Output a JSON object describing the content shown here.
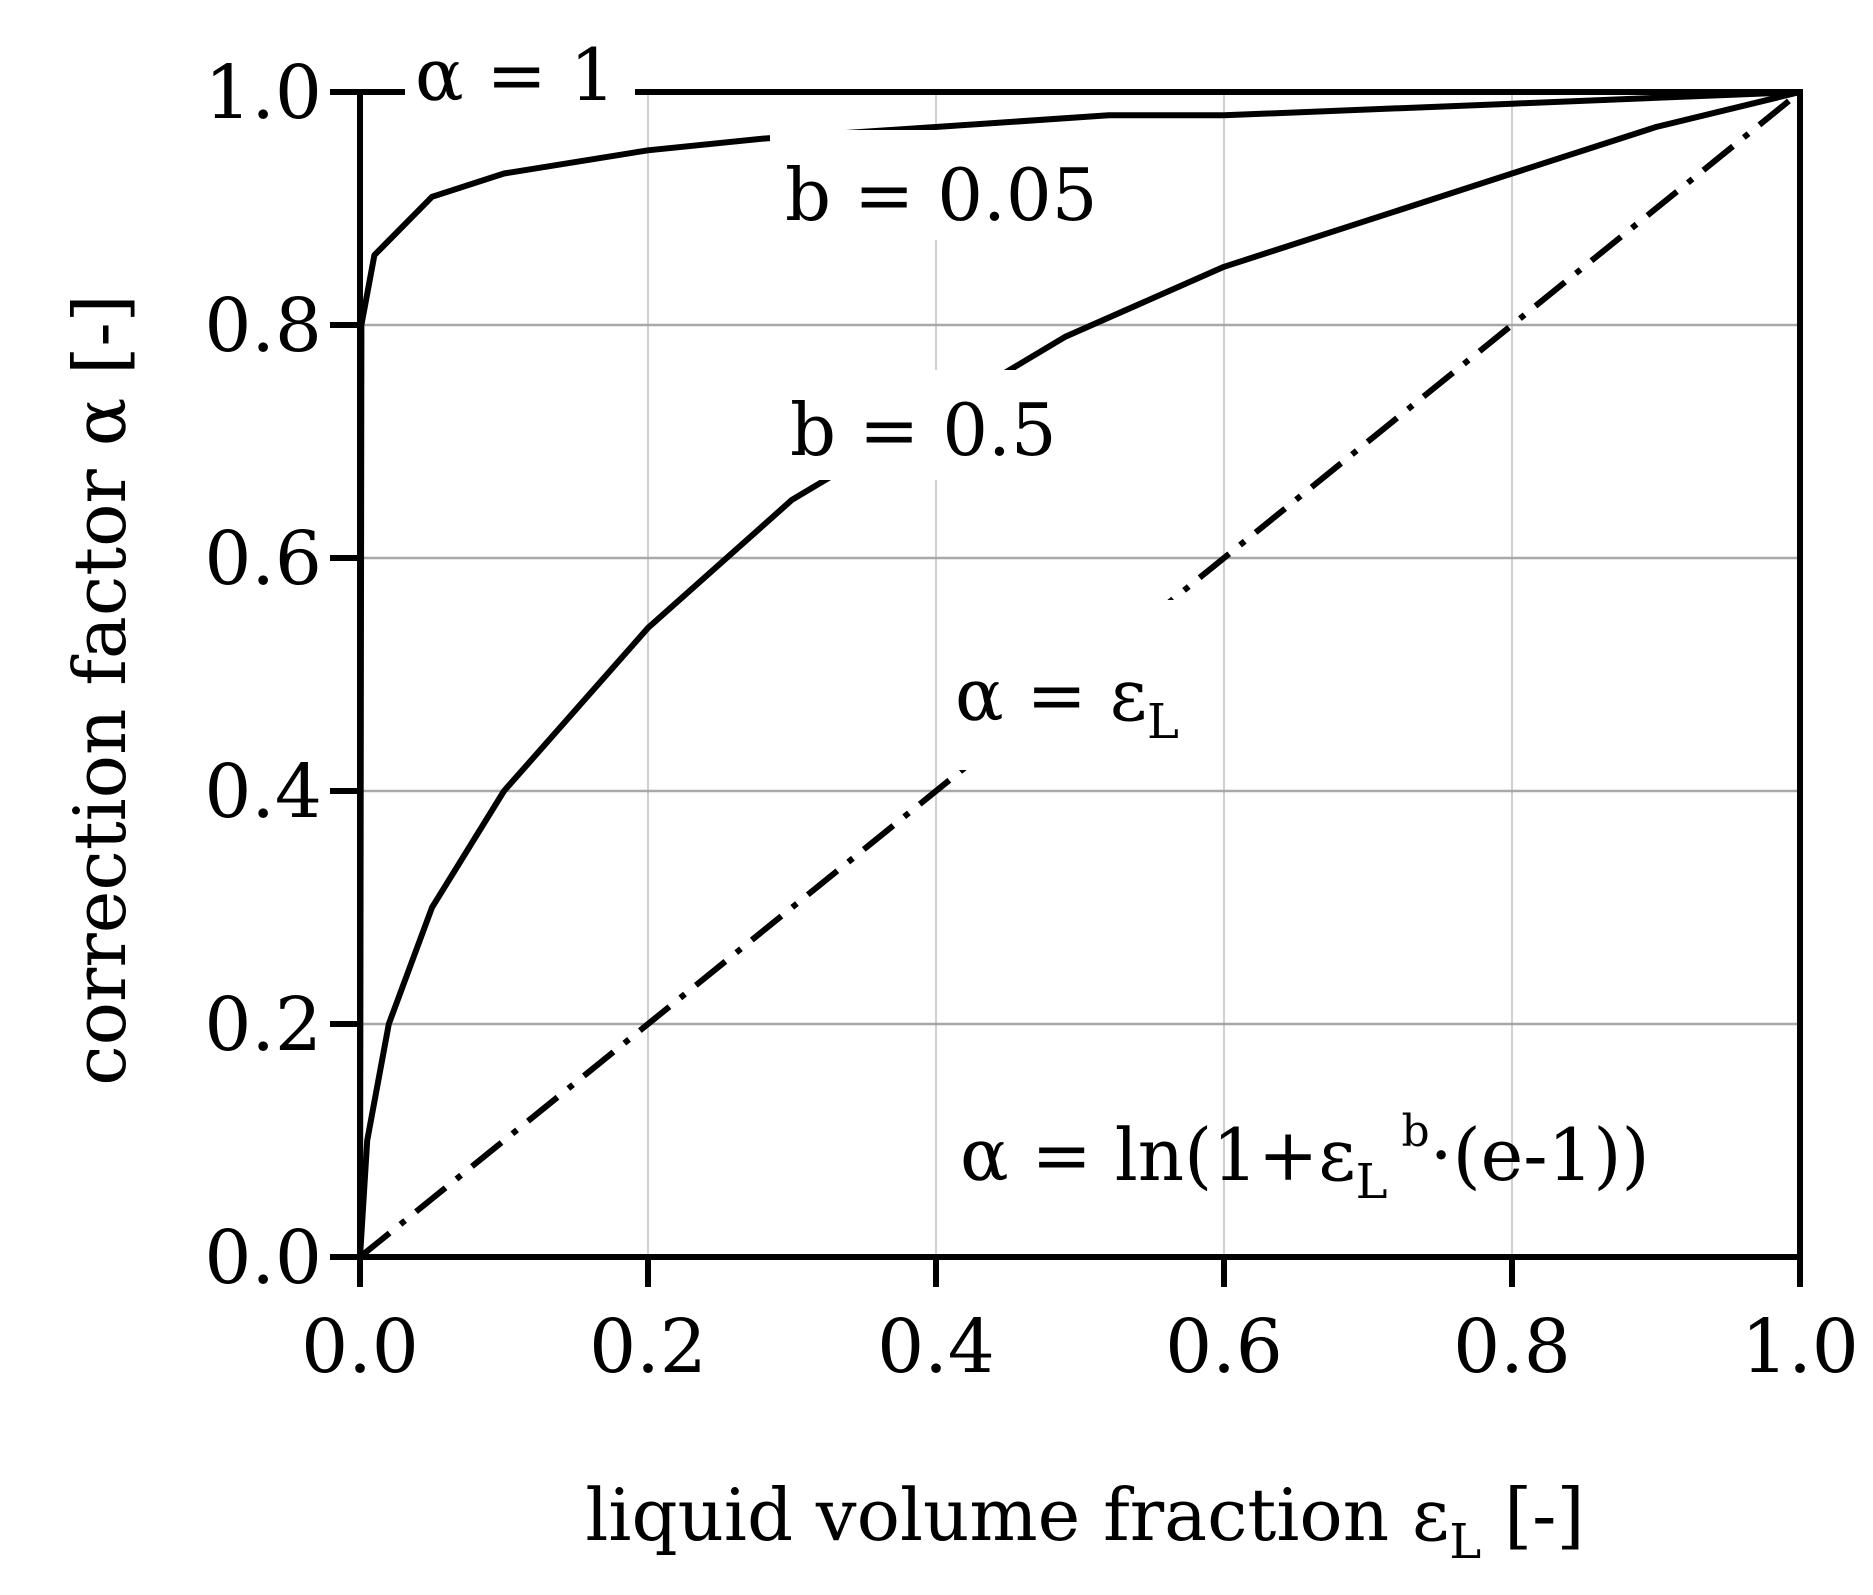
{
  "chart_data": {
    "type": "line",
    "title": "",
    "xlabel": "liquid volume fraction ε",
    "xlabel_subscript": "L",
    "xlabel_unit": "[-]",
    "ylabel": "correction factor α [-]",
    "xlim": [
      0,
      1
    ],
    "ylim": [
      0,
      1
    ],
    "x_ticks": [
      "0.0",
      "0.2",
      "0.4",
      "0.6",
      "0.8",
      "1.0"
    ],
    "y_ticks": [
      "0.0",
      "0.2",
      "0.4",
      "0.6",
      "0.8",
      "1.0"
    ],
    "grid": true,
    "formula": "α = ln(1+ε_L^b·(e-1))",
    "series": [
      {
        "name": "α = 1",
        "style": "dash-dot",
        "x": [
          0,
          0.2,
          0.4,
          0.6,
          0.8,
          1.0
        ],
        "values": [
          1.0,
          1.0,
          1.0,
          1.0,
          1.0,
          1.0
        ]
      },
      {
        "name": "b = 0.05",
        "style": "solid",
        "x": [
          0,
          0.001,
          0.01,
          0.05,
          0.1,
          0.2,
          0.28,
          0.52,
          0.6,
          0.8,
          1.0
        ],
        "values": [
          0,
          0.8,
          0.86,
          0.91,
          0.93,
          0.95,
          0.96,
          0.98,
          0.98,
          0.99,
          1.0
        ]
      },
      {
        "name": "b = 0.5",
        "style": "solid",
        "x": [
          0,
          0.005,
          0.02,
          0.05,
          0.1,
          0.2,
          0.3,
          0.49,
          0.6,
          0.7,
          0.8,
          0.9,
          1.0
        ],
        "values": [
          0,
          0.1,
          0.2,
          0.3,
          0.4,
          0.54,
          0.65,
          0.79,
          0.85,
          0.89,
          0.93,
          0.97,
          1.0
        ]
      },
      {
        "name": "α = ε",
        "name_subscript": "L",
        "style": "dash-dot",
        "x": [
          0,
          0.2,
          0.4,
          0.6,
          0.8,
          1.0
        ],
        "values": [
          0,
          0.2,
          0.4,
          0.6,
          0.8,
          1.0
        ]
      }
    ]
  }
}
